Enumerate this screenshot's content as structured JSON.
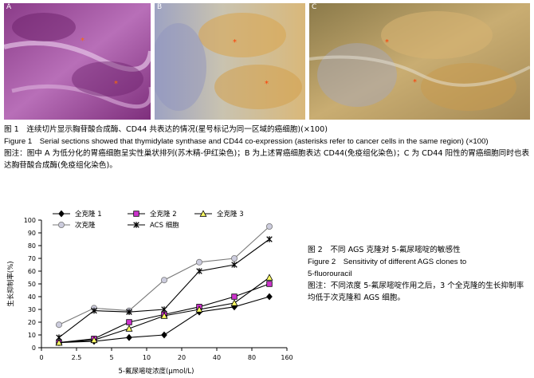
{
  "figure1": {
    "panels": [
      {
        "label": "A",
        "stain": "HE",
        "marker": "*"
      },
      {
        "label": "B",
        "stain": "IHC",
        "marker": "*"
      },
      {
        "label": "C",
        "stain": "IHC",
        "marker": "*"
      }
    ],
    "caption_cn": "图 1　连续切片显示胸苷酸合成酶、CD44 共表达的情况(星号标记为同一区域的癌细胞)(×100)",
    "caption_en": "Figure 1　Serial sections showed that thymidylate synthase and CD44 co-expression (asterisks refer to cancer cells in the same region) (×100)",
    "note": "图注：图中 A 为低分化的胃癌细胞呈实性巢状排列(苏木精-伊红染色)；B 为上述胃癌细胞表达 CD44(免疫组化染色)；C 为 CD44 阳性的胃癌细胞同时也表达胸苷酸合成酶(免疫组化染色)。"
  },
  "figure2": {
    "caption_cn": "图 2　不同 AGS 克隆对 5-氟尿嘧啶的敏感性",
    "caption_en_1": "Figure 2　Sensitivity of different AGS clones to",
    "caption_en_2": "5-fluorouracil",
    "note": "图注：不同浓度 5-氟尿嘧啶作用之后，3 个全克隆的生长抑制率均低于次克隆和 AGS 细胞。"
  },
  "chart_data": {
    "type": "line",
    "xlabel": "5-氟尿嘧啶浓度(μmol/L)",
    "ylabel": "生长抑制率(%)",
    "x_ticks": [
      "0",
      "2.5",
      "5",
      "10",
      "20",
      "40",
      "80",
      "160"
    ],
    "x_scale": "categorical-log",
    "x": [
      "1.25",
      "2.5",
      "5",
      "10",
      "20",
      "40",
      "80"
    ],
    "ylim": [
      0,
      100
    ],
    "y_ticks": [
      0,
      10,
      20,
      30,
      40,
      50,
      60,
      70,
      80,
      90,
      100
    ],
    "grid": false,
    "legend_position": "top",
    "series": [
      {
        "name": "全克隆 1",
        "marker": "diamond",
        "color": "#000000",
        "fill": "#000000",
        "values": [
          4,
          5,
          8,
          10,
          28,
          32,
          40
        ]
      },
      {
        "name": "全克隆 2",
        "marker": "square",
        "color": "#000000",
        "fill": "#cc33cc",
        "values": [
          4,
          7,
          20,
          26,
          32,
          40,
          50
        ]
      },
      {
        "name": "全克隆 3",
        "marker": "triangle",
        "color": "#000000",
        "fill": "#ffff66",
        "values": [
          4,
          6,
          15,
          25,
          30,
          35,
          55
        ]
      },
      {
        "name": "次克隆",
        "marker": "circle",
        "color": "#777777",
        "fill": "#ccccdd",
        "values": [
          18,
          31,
          29,
          53,
          67,
          70,
          95
        ]
      },
      {
        "name": "ACS 细胞",
        "marker": "star",
        "color": "#000000",
        "fill": "#000000",
        "values": [
          8,
          29,
          28,
          30,
          60,
          65,
          85
        ]
      }
    ]
  }
}
